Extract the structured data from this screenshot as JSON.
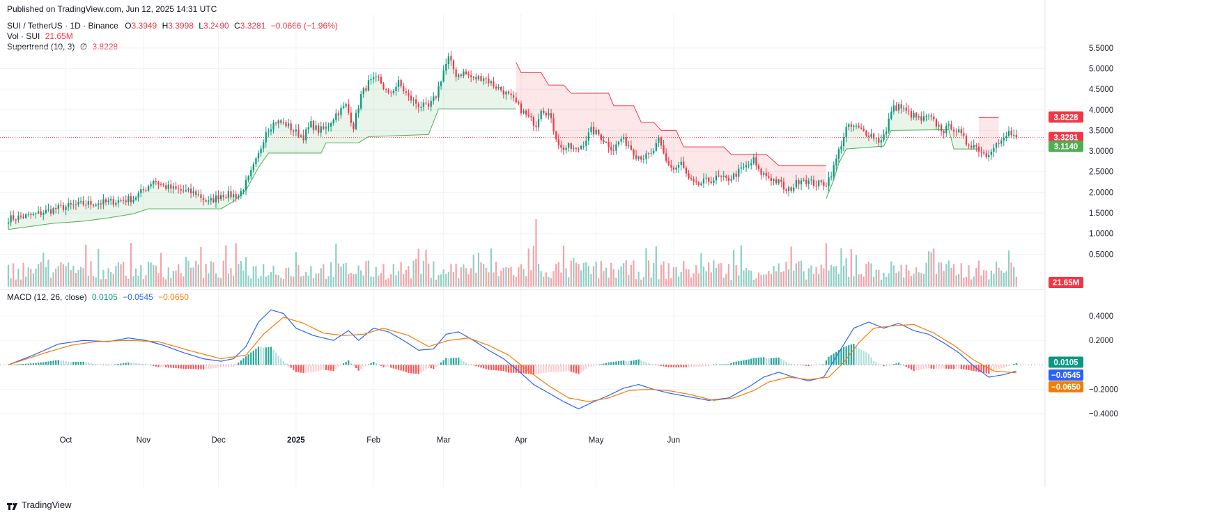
{
  "published": "Published on TradingView.com, Jun 12, 2025 14:31 UTC",
  "header": {
    "symbol": "SUI / TetherUS · 1D · Binance",
    "o_label": "O",
    "o": "3.3949",
    "h_label": "H",
    "h": "3.3998",
    "l_label": "L",
    "l": "3.2490",
    "c_label": "C",
    "c": "3.3281",
    "change": "−0.0666 (−1.96%)",
    "vol_label": "Vol · SUI",
    "vol_value": "21.65M",
    "supertrend_label": "Supertrend (10, 3)",
    "supertrend_symbol": "∅",
    "supertrend_value": "3.8228",
    "macd_label": "MACD (12, 26, close)",
    "macd_hist": "0.0105",
    "macd_line": "−0.0545",
    "macd_signal": "−0.0650"
  },
  "footer": {
    "brand": "TradingView"
  },
  "colors": {
    "up": "#089981",
    "down": "#f23645",
    "up_vol": "#8fd0c6",
    "down_vol": "#f5a3a8",
    "macd": "#2962ff",
    "signal": "#f57c00",
    "st_up": "#4caf50",
    "st_down": "#f23645"
  },
  "chart_data": [
    {
      "type": "candlestick",
      "title": "SUI / TetherUS · 1D · Binance",
      "x_ticks": [
        "Oct",
        "Nov",
        "Dec",
        "2025",
        "Feb",
        "Mar",
        "Apr",
        "May",
        "Jun"
      ],
      "y_ticks": [
        "5.5000",
        "5.0000",
        "4.5000",
        "4.0000",
        "3.5000",
        "3.0000",
        "2.5000",
        "2.0000",
        "1.5000",
        "1.0000",
        "0.5000"
      ],
      "ylim": [
        0.0,
        5.75
      ],
      "last_price": "3.3281",
      "supertrend_badge_up": "3.1140",
      "supertrend_badge_down": "3.8228",
      "volume_badge": "21.65M",
      "close_anchors": [
        {
          "d": 0,
          "v": 1.36
        },
        {
          "d": 10,
          "v": 1.45
        },
        {
          "d": 20,
          "v": 1.62
        },
        {
          "d": 30,
          "v": 1.72
        },
        {
          "d": 40,
          "v": 1.76
        },
        {
          "d": 50,
          "v": 1.85
        },
        {
          "d": 55,
          "v": 2.1
        },
        {
          "d": 58,
          "v": 2.3
        },
        {
          "d": 62,
          "v": 2.15
        },
        {
          "d": 68,
          "v": 2.05
        },
        {
          "d": 75,
          "v": 1.98
        },
        {
          "d": 80,
          "v": 1.75
        },
        {
          "d": 85,
          "v": 1.95
        },
        {
          "d": 92,
          "v": 1.92
        },
        {
          "d": 96,
          "v": 2.32
        },
        {
          "d": 100,
          "v": 2.9
        },
        {
          "d": 103,
          "v": 3.5
        },
        {
          "d": 107,
          "v": 3.72
        },
        {
          "d": 111,
          "v": 3.65
        },
        {
          "d": 115,
          "v": 3.45
        },
        {
          "d": 118,
          "v": 3.35
        },
        {
          "d": 121,
          "v": 3.65
        },
        {
          "d": 124,
          "v": 3.5
        },
        {
          "d": 127,
          "v": 3.55
        },
        {
          "d": 131,
          "v": 3.9
        },
        {
          "d": 135,
          "v": 4.1
        },
        {
          "d": 138,
          "v": 3.6
        },
        {
          "d": 141,
          "v": 4.35
        },
        {
          "d": 144,
          "v": 4.65
        },
        {
          "d": 148,
          "v": 4.75
        },
        {
          "d": 152,
          "v": 4.35
        },
        {
          "d": 156,
          "v": 4.65
        },
        {
          "d": 160,
          "v": 4.3
        },
        {
          "d": 164,
          "v": 4.12
        },
        {
          "d": 168,
          "v": 4.05
        },
        {
          "d": 171,
          "v": 4.35
        },
        {
          "d": 174,
          "v": 4.95
        },
        {
          "d": 176,
          "v": 5.25
        },
        {
          "d": 179,
          "v": 4.85
        },
        {
          "d": 182,
          "v": 4.9
        },
        {
          "d": 186,
          "v": 4.75
        },
        {
          "d": 190,
          "v": 4.8
        },
        {
          "d": 194,
          "v": 4.6
        },
        {
          "d": 198,
          "v": 4.45
        },
        {
          "d": 202,
          "v": 4.22
        },
        {
          "d": 205,
          "v": 4.0
        },
        {
          "d": 208,
          "v": 3.8
        },
        {
          "d": 211,
          "v": 3.65
        },
        {
          "d": 213,
          "v": 4.05
        },
        {
          "d": 216,
          "v": 3.9
        },
        {
          "d": 219,
          "v": 3.35
        },
        {
          "d": 221,
          "v": 3.05
        },
        {
          "d": 224,
          "v": 3.1
        },
        {
          "d": 227,
          "v": 3.0
        },
        {
          "d": 230,
          "v": 3.2
        },
        {
          "d": 233,
          "v": 3.5
        },
        {
          "d": 236,
          "v": 3.4
        },
        {
          "d": 239,
          "v": 3.2
        },
        {
          "d": 242,
          "v": 3.05
        },
        {
          "d": 245,
          "v": 3.3
        },
        {
          "d": 248,
          "v": 3.15
        },
        {
          "d": 251,
          "v": 2.9
        },
        {
          "d": 254,
          "v": 2.85
        },
        {
          "d": 257,
          "v": 2.9
        },
        {
          "d": 260,
          "v": 3.25
        },
        {
          "d": 263,
          "v": 2.75
        },
        {
          "d": 266,
          "v": 2.55
        },
        {
          "d": 269,
          "v": 2.7
        },
        {
          "d": 272,
          "v": 2.3
        },
        {
          "d": 275,
          "v": 2.15
        },
        {
          "d": 278,
          "v": 2.25
        },
        {
          "d": 281,
          "v": 2.3
        },
        {
          "d": 284,
          "v": 2.35
        },
        {
          "d": 287,
          "v": 2.3
        },
        {
          "d": 290,
          "v": 2.4
        },
        {
          "d": 293,
          "v": 2.55
        },
        {
          "d": 296,
          "v": 2.65
        },
        {
          "d": 298,
          "v": 2.78
        },
        {
          "d": 300,
          "v": 2.5
        },
        {
          "d": 303,
          "v": 2.4
        },
        {
          "d": 306,
          "v": 2.3
        },
        {
          "d": 309,
          "v": 2.2
        },
        {
          "d": 311,
          "v": 2.0
        },
        {
          "d": 314,
          "v": 2.15
        },
        {
          "d": 317,
          "v": 2.35
        },
        {
          "d": 320,
          "v": 2.25
        },
        {
          "d": 323,
          "v": 2.2
        },
        {
          "d": 327,
          "v": 2.22
        },
        {
          "d": 330,
          "v": 2.6
        },
        {
          "d": 332,
          "v": 3.0
        },
        {
          "d": 335,
          "v": 3.55
        },
        {
          "d": 338,
          "v": 3.6
        },
        {
          "d": 341,
          "v": 3.5
        },
        {
          "d": 345,
          "v": 3.4
        },
        {
          "d": 348,
          "v": 3.25
        },
        {
          "d": 351,
          "v": 3.45
        },
        {
          "d": 353,
          "v": 4.0
        },
        {
          "d": 356,
          "v": 4.1
        },
        {
          "d": 359,
          "v": 3.95
        },
        {
          "d": 362,
          "v": 3.85
        },
        {
          "d": 365,
          "v": 3.75
        },
        {
          "d": 368,
          "v": 3.82
        },
        {
          "d": 371,
          "v": 3.65
        },
        {
          "d": 374,
          "v": 3.5
        },
        {
          "d": 377,
          "v": 3.6
        },
        {
          "d": 380,
          "v": 3.45
        },
        {
          "d": 383,
          "v": 3.2
        },
        {
          "d": 386,
          "v": 3.15
        },
        {
          "d": 389,
          "v": 3.0
        },
        {
          "d": 391,
          "v": 2.9
        },
        {
          "d": 394,
          "v": 3.15
        },
        {
          "d": 397,
          "v": 3.2
        },
        {
          "d": 400,
          "v": 3.45
        },
        {
          "d": 403,
          "v": 3.33
        }
      ],
      "supertrend": [
        {
          "d": 0,
          "v": 1.1,
          "dir": "up"
        },
        {
          "d": 18,
          "v": 1.25,
          "dir": "up"
        },
        {
          "d": 30,
          "v": 1.3,
          "dir": "up"
        },
        {
          "d": 40,
          "v": 1.38,
          "dir": "up"
        },
        {
          "d": 50,
          "v": 1.48,
          "dir": "up"
        },
        {
          "d": 56,
          "v": 1.6,
          "dir": "up"
        },
        {
          "d": 85,
          "v": 1.6,
          "dir": "up"
        },
        {
          "d": 90,
          "v": 1.78,
          "dir": "up"
        },
        {
          "d": 95,
          "v": 2.05,
          "dir": "up"
        },
        {
          "d": 100,
          "v": 2.6,
          "dir": "up"
        },
        {
          "d": 104,
          "v": 2.95,
          "dir": "up"
        },
        {
          "d": 125,
          "v": 2.95,
          "dir": "up"
        },
        {
          "d": 127,
          "v": 3.2,
          "dir": "up"
        },
        {
          "d": 140,
          "v": 3.2,
          "dir": "up"
        },
        {
          "d": 144,
          "v": 3.35,
          "dir": "up"
        },
        {
          "d": 168,
          "v": 3.4,
          "dir": "up"
        },
        {
          "d": 172,
          "v": 4.02,
          "dir": "up"
        },
        {
          "d": 203,
          "v": 4.02,
          "dir": "up"
        },
        {
          "d": 203,
          "v": 5.15,
          "dir": "down"
        },
        {
          "d": 205,
          "v": 4.9,
          "dir": "down"
        },
        {
          "d": 213,
          "v": 4.9,
          "dir": "down"
        },
        {
          "d": 216,
          "v": 4.6,
          "dir": "down"
        },
        {
          "d": 222,
          "v": 4.6,
          "dir": "down"
        },
        {
          "d": 225,
          "v": 4.4,
          "dir": "down"
        },
        {
          "d": 240,
          "v": 4.4,
          "dir": "down"
        },
        {
          "d": 242,
          "v": 4.1,
          "dir": "down"
        },
        {
          "d": 250,
          "v": 4.1,
          "dir": "down"
        },
        {
          "d": 253,
          "v": 3.7,
          "dir": "down"
        },
        {
          "d": 258,
          "v": 3.7,
          "dir": "down"
        },
        {
          "d": 261,
          "v": 3.5,
          "dir": "down"
        },
        {
          "d": 267,
          "v": 3.5,
          "dir": "down"
        },
        {
          "d": 270,
          "v": 3.1,
          "dir": "down"
        },
        {
          "d": 286,
          "v": 3.1,
          "dir": "down"
        },
        {
          "d": 289,
          "v": 2.92,
          "dir": "down"
        },
        {
          "d": 303,
          "v": 2.92,
          "dir": "down"
        },
        {
          "d": 308,
          "v": 2.65,
          "dir": "down"
        },
        {
          "d": 327,
          "v": 2.65,
          "dir": "down"
        },
        {
          "d": 327,
          "v": 1.85,
          "dir": "up"
        },
        {
          "d": 330,
          "v": 2.3,
          "dir": "up"
        },
        {
          "d": 332,
          "v": 2.7,
          "dir": "up"
        },
        {
          "d": 335,
          "v": 3.05,
          "dir": "up"
        },
        {
          "d": 350,
          "v": 3.12,
          "dir": "up"
        },
        {
          "d": 353,
          "v": 3.5,
          "dir": "up"
        },
        {
          "d": 376,
          "v": 3.52,
          "dir": "up"
        },
        {
          "d": 378,
          "v": 3.05,
          "dir": "up"
        },
        {
          "d": 388,
          "v": 3.05,
          "dir": "up"
        },
        {
          "d": 388,
          "v": 3.82,
          "dir": "down"
        },
        {
          "d": 396,
          "v": 3.82,
          "dir": "down"
        }
      ]
    },
    {
      "type": "macd",
      "title": "MACD (12, 26, close)",
      "y_ticks": [
        "0.4000",
        "0.2000",
        "-0.2000",
        "-0.4000"
      ],
      "ylim": [
        -0.43,
        0.48
      ],
      "macd_anchors": [
        {
          "d": 0,
          "v": 0.0
        },
        {
          "d": 10,
          "v": 0.08
        },
        {
          "d": 20,
          "v": 0.17
        },
        {
          "d": 30,
          "v": 0.2
        },
        {
          "d": 40,
          "v": 0.19
        },
        {
          "d": 48,
          "v": 0.22
        },
        {
          "d": 55,
          "v": 0.2
        },
        {
          "d": 62,
          "v": 0.16
        },
        {
          "d": 70,
          "v": 0.1
        },
        {
          "d": 78,
          "v": 0.05
        },
        {
          "d": 85,
          "v": 0.03
        },
        {
          "d": 90,
          "v": 0.05
        },
        {
          "d": 95,
          "v": 0.15
        },
        {
          "d": 100,
          "v": 0.35
        },
        {
          "d": 105,
          "v": 0.45
        },
        {
          "d": 110,
          "v": 0.42
        },
        {
          "d": 115,
          "v": 0.3
        },
        {
          "d": 122,
          "v": 0.24
        },
        {
          "d": 130,
          "v": 0.2
        },
        {
          "d": 136,
          "v": 0.28
        },
        {
          "d": 140,
          "v": 0.2
        },
        {
          "d": 146,
          "v": 0.3
        },
        {
          "d": 152,
          "v": 0.27
        },
        {
          "d": 158,
          "v": 0.2
        },
        {
          "d": 164,
          "v": 0.12
        },
        {
          "d": 170,
          "v": 0.13
        },
        {
          "d": 175,
          "v": 0.25
        },
        {
          "d": 180,
          "v": 0.27
        },
        {
          "d": 186,
          "v": 0.2
        },
        {
          "d": 192,
          "v": 0.12
        },
        {
          "d": 198,
          "v": 0.05
        },
        {
          "d": 204,
          "v": -0.05
        },
        {
          "d": 210,
          "v": -0.16
        },
        {
          "d": 216,
          "v": -0.23
        },
        {
          "d": 222,
          "v": -0.3
        },
        {
          "d": 228,
          "v": -0.36
        },
        {
          "d": 233,
          "v": -0.31
        },
        {
          "d": 240,
          "v": -0.25
        },
        {
          "d": 246,
          "v": -0.19
        },
        {
          "d": 252,
          "v": -0.16
        },
        {
          "d": 258,
          "v": -0.2
        },
        {
          "d": 264,
          "v": -0.23
        },
        {
          "d": 272,
          "v": -0.26
        },
        {
          "d": 280,
          "v": -0.29
        },
        {
          "d": 288,
          "v": -0.27
        },
        {
          "d": 296,
          "v": -0.18
        },
        {
          "d": 302,
          "v": -0.1
        },
        {
          "d": 308,
          "v": -0.06
        },
        {
          "d": 314,
          "v": -0.1
        },
        {
          "d": 320,
          "v": -0.13
        },
        {
          "d": 326,
          "v": -0.1
        },
        {
          "d": 332,
          "v": 0.1
        },
        {
          "d": 338,
          "v": 0.3
        },
        {
          "d": 344,
          "v": 0.35
        },
        {
          "d": 350,
          "v": 0.3
        },
        {
          "d": 356,
          "v": 0.34
        },
        {
          "d": 362,
          "v": 0.28
        },
        {
          "d": 368,
          "v": 0.25
        },
        {
          "d": 374,
          "v": 0.18
        },
        {
          "d": 380,
          "v": 0.1
        },
        {
          "d": 386,
          "v": -0.01
        },
        {
          "d": 392,
          "v": -0.1
        },
        {
          "d": 398,
          "v": -0.08
        },
        {
          "d": 403,
          "v": -0.05
        }
      ],
      "signal_anchors": [
        {
          "d": 0,
          "v": 0.0
        },
        {
          "d": 15,
          "v": 0.1
        },
        {
          "d": 25,
          "v": 0.16
        },
        {
          "d": 35,
          "v": 0.19
        },
        {
          "d": 48,
          "v": 0.2
        },
        {
          "d": 60,
          "v": 0.19
        },
        {
          "d": 72,
          "v": 0.12
        },
        {
          "d": 85,
          "v": 0.05
        },
        {
          "d": 95,
          "v": 0.08
        },
        {
          "d": 102,
          "v": 0.25
        },
        {
          "d": 110,
          "v": 0.39
        },
        {
          "d": 118,
          "v": 0.34
        },
        {
          "d": 126,
          "v": 0.26
        },
        {
          "d": 134,
          "v": 0.24
        },
        {
          "d": 142,
          "v": 0.25
        },
        {
          "d": 150,
          "v": 0.3
        },
        {
          "d": 160,
          "v": 0.24
        },
        {
          "d": 168,
          "v": 0.15
        },
        {
          "d": 176,
          "v": 0.2
        },
        {
          "d": 184,
          "v": 0.22
        },
        {
          "d": 192,
          "v": 0.16
        },
        {
          "d": 200,
          "v": 0.08
        },
        {
          "d": 208,
          "v": -0.05
        },
        {
          "d": 216,
          "v": -0.17
        },
        {
          "d": 224,
          "v": -0.27
        },
        {
          "d": 232,
          "v": -0.3
        },
        {
          "d": 240,
          "v": -0.27
        },
        {
          "d": 248,
          "v": -0.21
        },
        {
          "d": 256,
          "v": -0.2
        },
        {
          "d": 264,
          "v": -0.21
        },
        {
          "d": 272,
          "v": -0.24
        },
        {
          "d": 282,
          "v": -0.29
        },
        {
          "d": 290,
          "v": -0.27
        },
        {
          "d": 298,
          "v": -0.21
        },
        {
          "d": 304,
          "v": -0.14
        },
        {
          "d": 312,
          "v": -0.1
        },
        {
          "d": 320,
          "v": -0.12
        },
        {
          "d": 328,
          "v": -0.1
        },
        {
          "d": 334,
          "v": 0.02
        },
        {
          "d": 340,
          "v": 0.18
        },
        {
          "d": 346,
          "v": 0.3
        },
        {
          "d": 354,
          "v": 0.32
        },
        {
          "d": 362,
          "v": 0.33
        },
        {
          "d": 370,
          "v": 0.26
        },
        {
          "d": 378,
          "v": 0.16
        },
        {
          "d": 386,
          "v": 0.04
        },
        {
          "d": 394,
          "v": -0.05
        },
        {
          "d": 403,
          "v": -0.065
        }
      ]
    }
  ]
}
